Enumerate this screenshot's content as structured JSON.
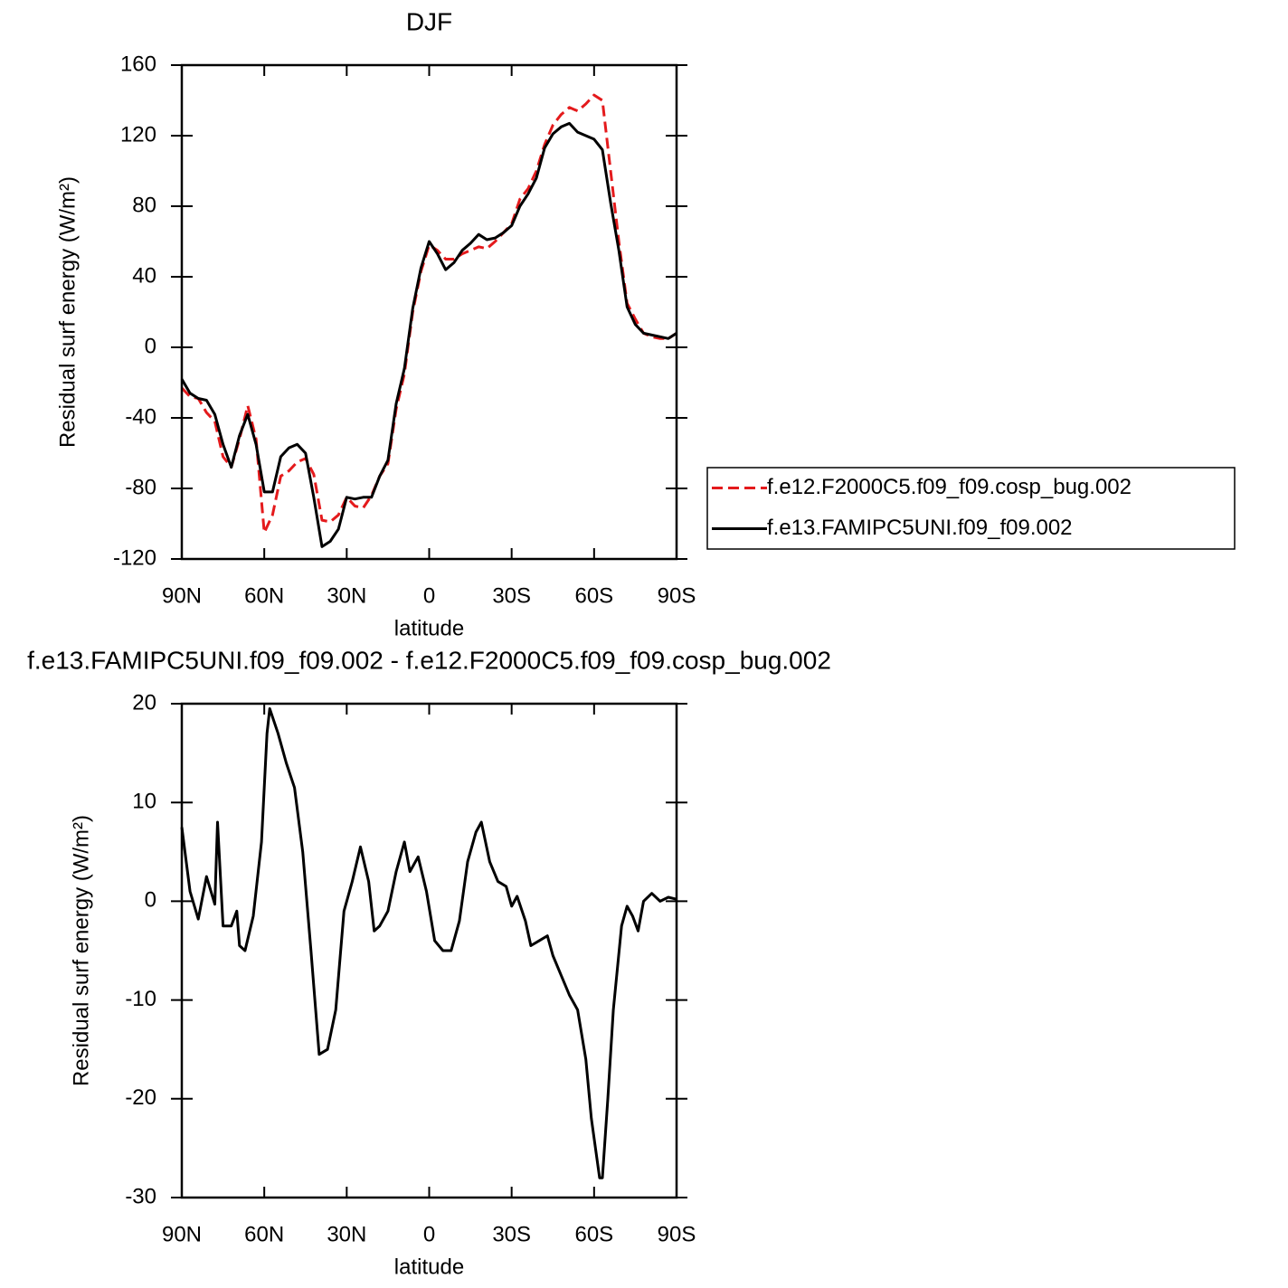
{
  "chart_data": [
    {
      "type": "line",
      "title": "DJF",
      "x_label": "latitude",
      "y_label": "Residual surf energy (W/m²)",
      "xlim": [
        90,
        -90
      ],
      "ylim": [
        -120,
        160
      ],
      "xticks": [
        {
          "value": 90,
          "label": "90N"
        },
        {
          "value": 60,
          "label": "60N"
        },
        {
          "value": 30,
          "label": "30N"
        },
        0,
        {
          "value": -30,
          "label": "30S"
        },
        {
          "value": -60,
          "label": "60S"
        },
        {
          "value": -90,
          "label": "90S"
        }
      ],
      "yticks": [
        -120,
        -80,
        -40,
        0,
        40,
        80,
        120,
        160
      ],
      "legend": "right",
      "x": [
        90,
        87,
        84,
        81,
        78,
        75,
        72,
        69,
        66,
        63,
        60,
        57,
        54,
        51,
        48,
        45,
        42,
        39,
        36,
        33,
        30,
        27,
        24,
        21,
        18,
        15,
        12,
        9,
        6,
        3,
        0,
        -3,
        -6,
        -9,
        -12,
        -15,
        -18,
        -21,
        -24,
        -27,
        -30,
        -33,
        -36,
        -39,
        -42,
        -45,
        -48,
        -51,
        -54,
        -57,
        -60,
        -63,
        -66,
        -69,
        -72,
        -75,
        -78,
        -81,
        -84,
        -87,
        -90
      ],
      "series": [
        {
          "name": "f.e12.F2000C5.f09_f09.cosp_bug.002",
          "color": "#e41a1c",
          "dash": true,
          "values": [
            -23,
            -28,
            -29,
            -37,
            -42,
            -62,
            -68,
            -52,
            -33,
            -52,
            -105,
            -95,
            -73,
            -70,
            -65,
            -63,
            -72,
            -98,
            -99,
            -95,
            -85,
            -90,
            -91,
            -84,
            -73,
            -66,
            -35,
            -15,
            20,
            43,
            58,
            55,
            50,
            50,
            53,
            55,
            57,
            56,
            60,
            65,
            70,
            84,
            90,
            100,
            115,
            126,
            132,
            136,
            134,
            138,
            143,
            140,
            100,
            60,
            25,
            16,
            8,
            6,
            5,
            5,
            8
          ]
        },
        {
          "name": "f.e13.FAMIPC5UNI.f09_f09.002",
          "color": "#000000",
          "dash": false,
          "values": [
            -18,
            -26,
            -29,
            -30,
            -38,
            -55,
            -68,
            -50,
            -38,
            -55,
            -82,
            -82,
            -62,
            -57,
            -55,
            -60,
            -85,
            -113,
            -110,
            -103,
            -85,
            -86,
            -85,
            -85,
            -73,
            -64,
            -32,
            -12,
            22,
            45,
            60,
            53,
            44,
            48,
            55,
            59,
            64,
            61,
            62,
            65,
            69,
            80,
            87,
            96,
            113,
            121,
            125,
            127,
            122,
            120,
            118,
            112,
            82,
            55,
            23,
            13,
            8,
            7,
            6,
            5,
            8
          ]
        }
      ]
    },
    {
      "type": "line",
      "title": "f.e13.FAMIPC5UNI.f09_f09.002 - f.e12.F2000C5.f09_f09.cosp_bug.002",
      "x_label": "latitude",
      "y_label": "Residual surf energy (W/m²)",
      "xlim": [
        90,
        -90
      ],
      "ylim": [
        -30,
        20
      ],
      "xticks": [
        {
          "value": 90,
          "label": "90N"
        },
        {
          "value": 60,
          "label": "60N"
        },
        {
          "value": 30,
          "label": "30N"
        },
        0,
        {
          "value": -30,
          "label": "30S"
        },
        {
          "value": -60,
          "label": "60S"
        },
        {
          "value": -90,
          "label": "90S"
        }
      ],
      "yticks": [
        -30,
        -20,
        -10,
        0,
        10,
        20
      ],
      "color": "#000000",
      "x": [
        90,
        87,
        84,
        81,
        78,
        77,
        75,
        72,
        70,
        69,
        67,
        64,
        61,
        59,
        58,
        55,
        52,
        49,
        46,
        43,
        40,
        37,
        34,
        31,
        28,
        25,
        22,
        20,
        18,
        15,
        12,
        9,
        7,
        4,
        1,
        -2,
        -5,
        -8,
        -11,
        -14,
        -17,
        -19,
        -22,
        -25,
        -28,
        -30,
        -32,
        -35,
        -37,
        -40,
        -43,
        -45,
        -48,
        -51,
        -54,
        -57,
        -59,
        -62,
        -63,
        -65,
        -67,
        -70,
        -72,
        -74,
        -76,
        -78,
        -81,
        -84,
        -87,
        -90
      ],
      "values": [
        7.5,
        1,
        -1.8,
        2.5,
        -0.3,
        8,
        -2.5,
        -2.5,
        -1,
        -4.5,
        -5,
        -1.5,
        6,
        17,
        19.5,
        17,
        14,
        11.5,
        5,
        -5,
        -15.5,
        -15,
        -11,
        -1,
        2,
        5.5,
        2,
        -3,
        -2.5,
        -1,
        3,
        6,
        3,
        4.5,
        1,
        -4,
        -5,
        -5,
        -2,
        4,
        7,
        8,
        4,
        2,
        1.5,
        -0.5,
        0.5,
        -2,
        -4.5,
        -4,
        -3.5,
        -5.5,
        -7.5,
        -9.5,
        -11,
        -16,
        -22,
        -28,
        -28,
        -20,
        -11,
        -2.5,
        -0.5,
        -1.5,
        -3,
        0,
        0.8,
        0,
        0.4,
        0.2
      ]
    }
  ]
}
